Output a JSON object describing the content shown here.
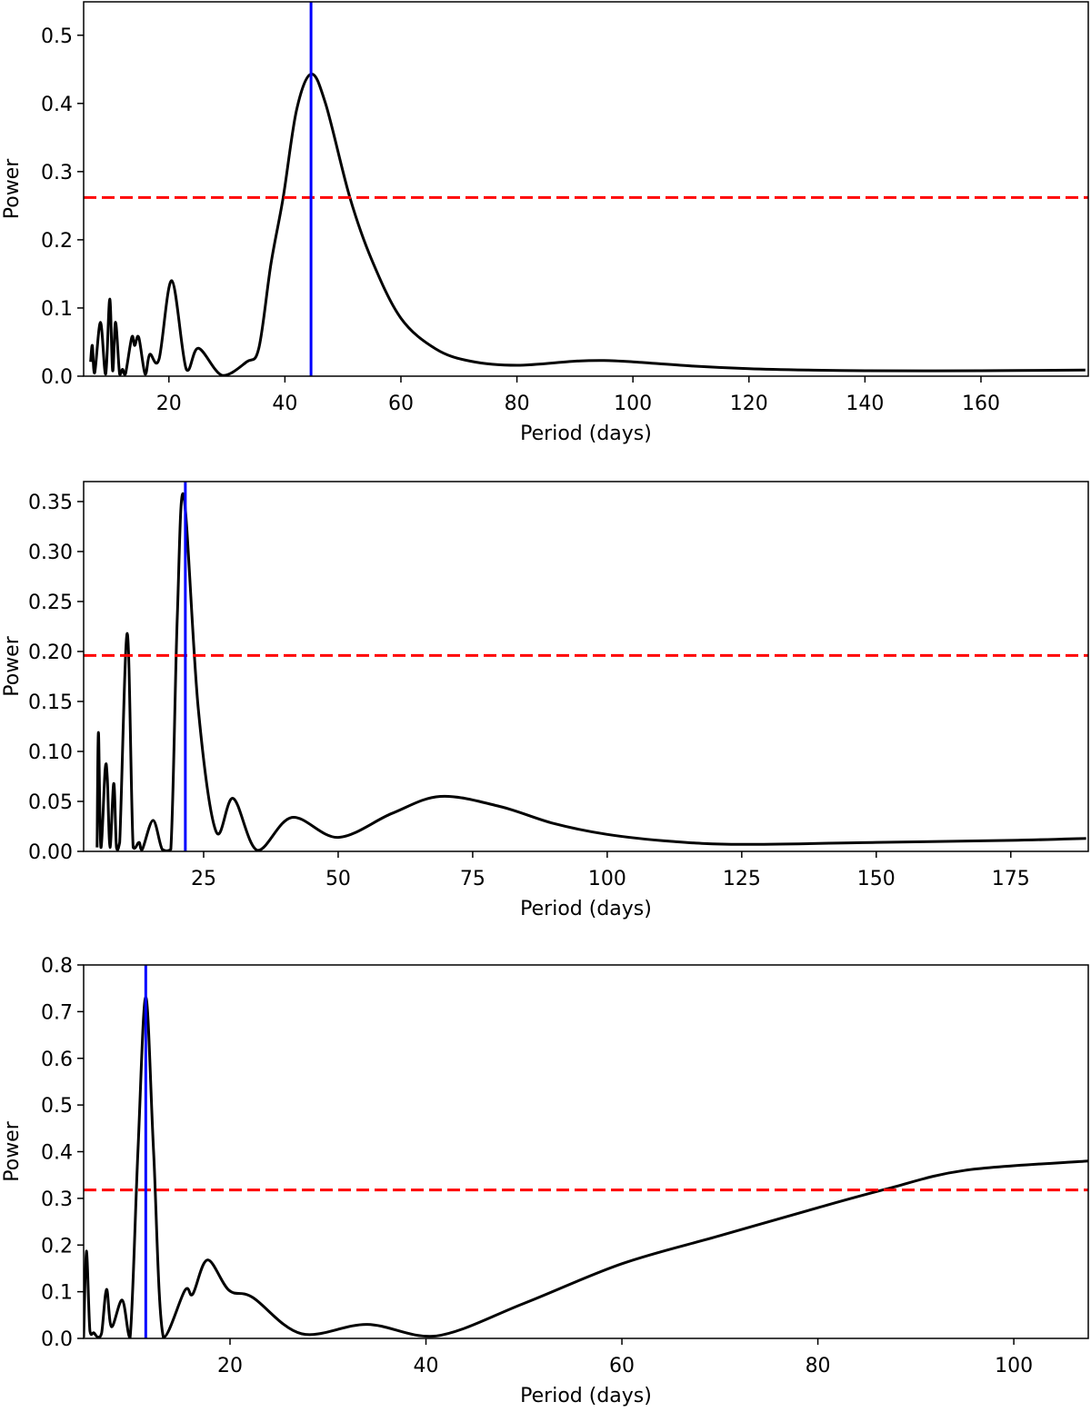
{
  "chart_data": [
    {
      "type": "line",
      "xlabel": "Period (days)",
      "ylabel": "Power",
      "xlim": [
        5.3,
        178.5
      ],
      "ylim": [
        0,
        0.549
      ],
      "xticks": [
        20,
        40,
        60,
        80,
        100,
        120,
        140,
        160
      ],
      "yticks": [
        0.0,
        0.1,
        0.2,
        0.3,
        0.4,
        0.5
      ],
      "ytick_labels": [
        "0.0",
        "0.1",
        "0.2",
        "0.3",
        "0.4",
        "0.5"
      ],
      "threshold": 0.262,
      "peak_period": 44.5,
      "colors": {
        "curve": "#000000",
        "threshold": "#ff0000",
        "peak": "#0000ff"
      },
      "x": [
        6.5,
        6.8,
        7.2,
        8.2,
        9.1,
        9.8,
        10.3,
        10.8,
        11.5,
        12.0,
        12.5,
        13.6,
        14.1,
        14.8,
        15.9,
        16.7,
        18.3,
        20.5,
        23.0,
        25.1,
        29.2,
        33.4,
        35.5,
        37.6,
        39.7,
        42,
        44.5,
        47,
        51.2,
        55,
        60,
        66,
        72,
        80,
        90,
        95,
        100,
        110,
        120,
        130,
        140,
        160,
        178
      ],
      "y": [
        0.021,
        0.045,
        0.005,
        0.079,
        0.003,
        0.113,
        0.008,
        0.079,
        0.003,
        0.01,
        0.003,
        0.057,
        0.045,
        0.057,
        0.003,
        0.032,
        0.025,
        0.14,
        0.01,
        0.041,
        0.001,
        0.021,
        0.041,
        0.165,
        0.262,
        0.39,
        0.443,
        0.4,
        0.262,
        0.17,
        0.085,
        0.04,
        0.022,
        0.016,
        0.022,
        0.023,
        0.021,
        0.015,
        0.011,
        0.009,
        0.008,
        0.008,
        0.009
      ]
    },
    {
      "type": "line",
      "xlabel": "Period (days)",
      "ylabel": "Power",
      "xlim": [
        2.7,
        189.4
      ],
      "ylim": [
        0,
        0.37
      ],
      "xticks": [
        25,
        50,
        75,
        100,
        125,
        150,
        175
      ],
      "yticks": [
        0.0,
        0.05,
        0.1,
        0.15,
        0.2,
        0.25,
        0.3,
        0.35
      ],
      "ytick_labels": [
        "0.00",
        "0.05",
        "0.10",
        "0.15",
        "0.20",
        "0.25",
        "0.30",
        "0.35"
      ],
      "threshold": 0.196,
      "peak_period": 21.6,
      "colors": {
        "curve": "#000000",
        "threshold": "#ff0000",
        "peak": "#0000ff"
      },
      "x": [
        5.2,
        5.45,
        5.9,
        6.7,
        7.1,
        7.6,
        8.3,
        8.8,
        9.4,
        10.8,
        11.9,
        13.0,
        13.6,
        15.6,
        17.3,
        18.9,
        20.1,
        21.3,
        24.0,
        27.3,
        30.5,
        35.0,
        41.4,
        50.0,
        60,
        69,
        80,
        90,
        100,
        112,
        125,
        150,
        175,
        189
      ],
      "y": [
        0.004,
        0.119,
        0.004,
        0.082,
        0.073,
        0.004,
        0.068,
        0.004,
        0.009,
        0.218,
        0.004,
        0.009,
        0.002,
        0.031,
        0.002,
        0.002,
        0.234,
        0.356,
        0.143,
        0.02,
        0.053,
        0.001,
        0.034,
        0.014,
        0.038,
        0.055,
        0.045,
        0.028,
        0.017,
        0.01,
        0.007,
        0.009,
        0.011,
        0.013
      ]
    },
    {
      "type": "line",
      "xlabel": "Period (days)",
      "ylabel": "Power",
      "xlim": [
        5.06,
        107.6
      ],
      "ylim": [
        0,
        0.8
      ],
      "xticks": [
        20,
        40,
        60,
        80,
        100
      ],
      "yticks": [
        0.0,
        0.1,
        0.2,
        0.3,
        0.4,
        0.5,
        0.6,
        0.7,
        0.8
      ],
      "ytick_labels": [
        "0.0",
        "0.1",
        "0.2",
        "0.3",
        "0.4",
        "0.5",
        "0.6",
        "0.7",
        "0.8"
      ],
      "threshold": 0.318,
      "peak_period": 11.4,
      "colors": {
        "curve": "#000000",
        "threshold": "#ff0000",
        "peak": "#0000ff"
      },
      "x": [
        5.06,
        5.34,
        5.7,
        6.1,
        6.5,
        6.9,
        7.4,
        7.9,
        9.0,
        9.8,
        10.6,
        11.4,
        12.2,
        13.2,
        15.4,
        16.2,
        17.7,
        19.9,
        22.3,
        27.3,
        34,
        41,
        50,
        60,
        70,
        80,
        87,
        95,
        107.6
      ],
      "y": [
        0.002,
        0.187,
        0.016,
        0.012,
        0.003,
        0.012,
        0.105,
        0.025,
        0.082,
        0.002,
        0.4,
        0.731,
        0.4,
        0.002,
        0.103,
        0.095,
        0.168,
        0.103,
        0.088,
        0.01,
        0.03,
        0.005,
        0.075,
        0.16,
        0.22,
        0.28,
        0.32,
        0.36,
        0.38
      ]
    }
  ]
}
